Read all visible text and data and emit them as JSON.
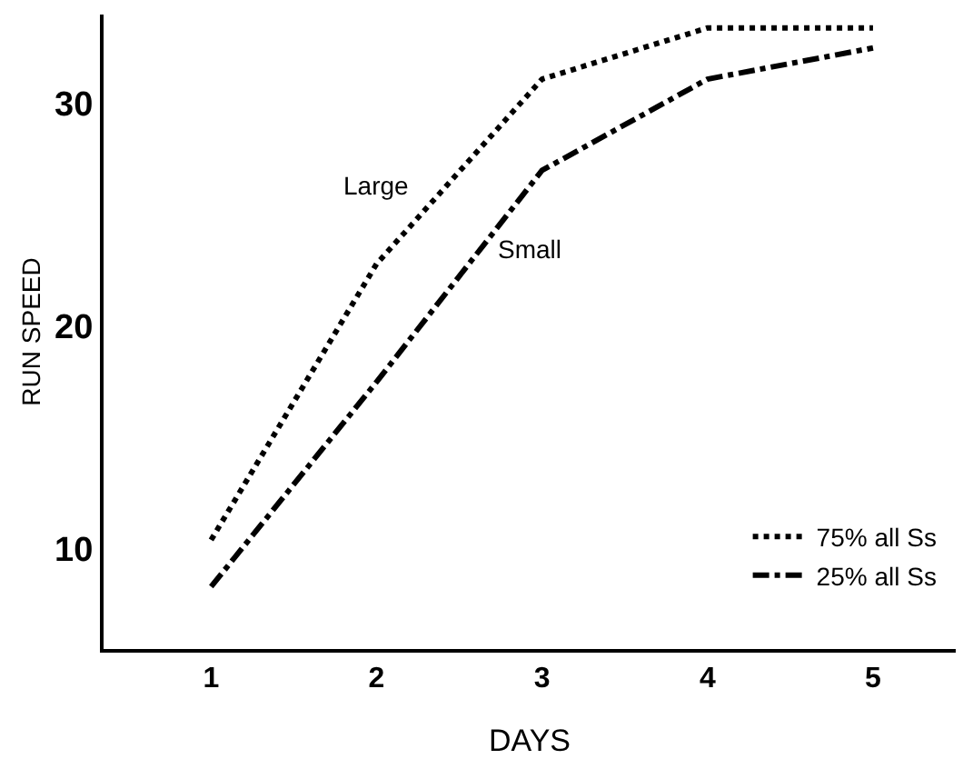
{
  "chart_data": {
    "type": "line",
    "xlabel": "DAYS",
    "ylabel": "RUN SPEED",
    "x": [
      1,
      2,
      3,
      4,
      5
    ],
    "series": [
      {
        "name": "75% all Ss",
        "color": "#000000",
        "line_style": "dotted",
        "values": [
          10.4,
          22.8,
          31.1,
          33.4,
          33.4
        ]
      },
      {
        "name": "25% all Ss",
        "color": "#000000",
        "line_style": "dashdot",
        "values": [
          8.3,
          17.5,
          27.0,
          31.1,
          32.5
        ]
      }
    ],
    "annotations": [
      "Large",
      "Small"
    ],
    "xlim": [
      0.35,
      5.5
    ],
    "ylim": [
      5.5,
      34
    ],
    "xticks": [
      1,
      2,
      3,
      4,
      5
    ],
    "yticks": [
      10,
      20,
      30
    ],
    "legend": "bottom right",
    "marker": "none"
  }
}
